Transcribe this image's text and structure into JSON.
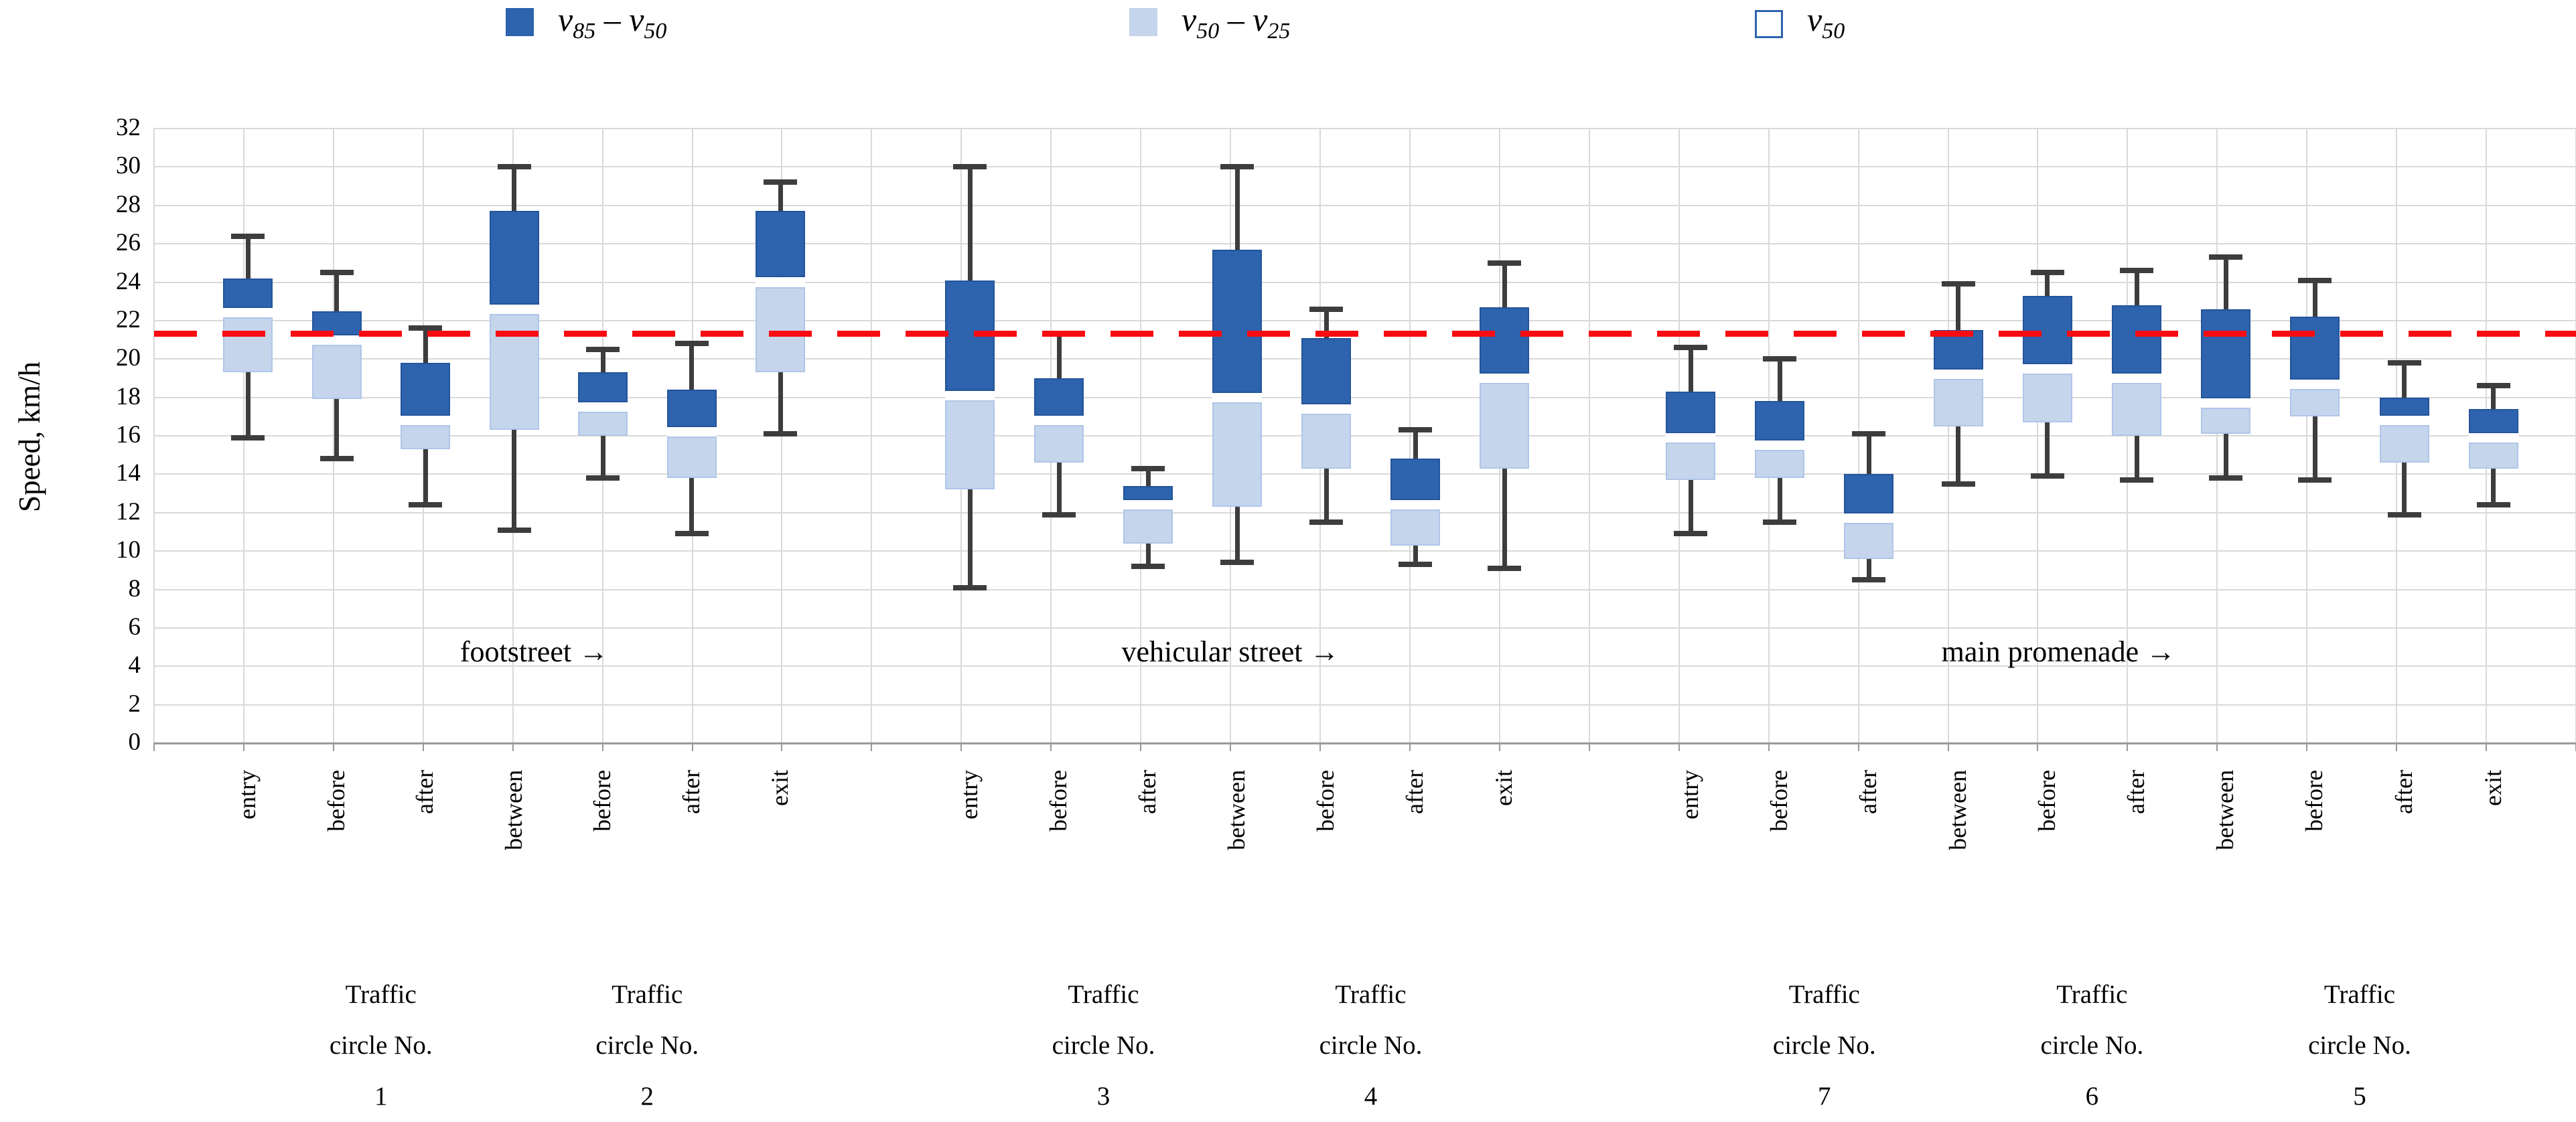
{
  "colors": {
    "dark_blue": "#2E63AD",
    "dark_blue_border": "#24549A",
    "light_blue": "#C5D5EC",
    "light_blue_border": "#AFC6E8",
    "red_line": "#F80C12",
    "gridline": "#D9D9D9",
    "axis": "#9A9A9A",
    "whisker": "#3D3D3D",
    "text": "#000000"
  },
  "legend": {
    "items": [
      {
        "swatch": "dark",
        "v1": "v",
        "sub1": "85",
        "sep": " – ",
        "v2": "v",
        "sub2": "50"
      },
      {
        "swatch": "light",
        "v1": "v",
        "sub1": "50",
        "sep": " – ",
        "v2": "v",
        "sub2": "25"
      },
      {
        "swatch": "outline",
        "v1": "v",
        "sub1": "50",
        "sep": "",
        "v2": "",
        "sub2": ""
      }
    ]
  },
  "y_axis": {
    "title": "Speed, km/h",
    "ticks": [
      "0",
      "2",
      "4",
      "6",
      "8",
      "10",
      "12",
      "14",
      "16",
      "18",
      "20",
      "22",
      "24",
      "26",
      "28",
      "30",
      "32"
    ]
  },
  "chart_data": {
    "type": "boxplot",
    "title": "",
    "xlabel": "",
    "ylabel": "Speed, km/h",
    "ylim": [
      0,
      32
    ],
    "y_tick_step": 2,
    "grid": "on",
    "legend_position": "top",
    "series_legend": [
      "v85 − v50",
      "v50 − v25",
      "v50"
    ],
    "red_dashed_line_value": 21.3,
    "groups": [
      {
        "name": "footstreet",
        "box_count": 7
      },
      {
        "name": "vehicular street",
        "box_count": 7
      },
      {
        "name": "main promenade",
        "box_count": 10
      }
    ],
    "street_annotations": [
      {
        "text": "footstreet →",
        "group": 0
      },
      {
        "text": "vehicular street →",
        "group": 1
      },
      {
        "text": "main promenade →",
        "group": 2
      }
    ],
    "circle_labels": [
      {
        "lines": [
          "Traffic",
          "circle No.",
          "1"
        ],
        "anchor_boxes": [
          1,
          2
        ]
      },
      {
        "lines": [
          "Traffic",
          "circle No.",
          "2"
        ],
        "anchor_boxes": [
          4,
          5
        ]
      },
      {
        "lines": [
          "Traffic",
          "circle No.",
          "3"
        ],
        "anchor_boxes": [
          8,
          9
        ]
      },
      {
        "lines": [
          "Traffic",
          "circle No.",
          "4"
        ],
        "anchor_boxes": [
          11,
          12
        ]
      },
      {
        "lines": [
          "Traffic",
          "circle No.",
          "7"
        ],
        "anchor_boxes": [
          15,
          16
        ]
      },
      {
        "lines": [
          "Traffic",
          "circle No.",
          "6"
        ],
        "anchor_boxes": [
          18,
          19
        ]
      },
      {
        "lines": [
          "Traffic",
          "circle No.",
          "5"
        ],
        "anchor_boxes": [
          21,
          22
        ]
      }
    ],
    "boxes": [
      {
        "group": 0,
        "tick": "entry",
        "whisker_low": 15.9,
        "v25": 19.3,
        "v50": 22.4,
        "v85": 24.2,
        "whisker_high": 26.4
      },
      {
        "group": 0,
        "tick": "before",
        "whisker_low": 14.8,
        "v25": 17.9,
        "v50": 21.0,
        "v85": 22.5,
        "whisker_high": 24.5
      },
      {
        "group": 0,
        "tick": "after",
        "whisker_low": 12.4,
        "v25": 15.3,
        "v50": 16.8,
        "v85": 19.8,
        "whisker_high": 21.6
      },
      {
        "group": 0,
        "tick": "between",
        "whisker_low": 11.1,
        "v25": 16.3,
        "v50": 22.6,
        "v85": 27.7,
        "whisker_high": 30.0
      },
      {
        "group": 0,
        "tick": "before",
        "whisker_low": 13.8,
        "v25": 16.0,
        "v50": 17.5,
        "v85": 19.3,
        "whisker_high": 20.5
      },
      {
        "group": 0,
        "tick": "after",
        "whisker_low": 10.9,
        "v25": 13.8,
        "v50": 16.2,
        "v85": 18.4,
        "whisker_high": 20.8
      },
      {
        "group": 0,
        "tick": "exit",
        "whisker_low": 16.1,
        "v25": 19.3,
        "v50": 24.0,
        "v85": 27.7,
        "whisker_high": 29.2
      },
      {
        "group": 1,
        "tick": "entry",
        "whisker_low": 8.1,
        "v25": 13.2,
        "v50": 18.1,
        "v85": 24.1,
        "whisker_high": 30.0
      },
      {
        "group": 1,
        "tick": "before",
        "whisker_low": 11.9,
        "v25": 14.6,
        "v50": 16.8,
        "v85": 19.0,
        "whisker_high": 21.3
      },
      {
        "group": 1,
        "tick": "after",
        "whisker_low": 9.2,
        "v25": 10.4,
        "v50": 12.4,
        "v85": 13.4,
        "whisker_high": 14.3
      },
      {
        "group": 1,
        "tick": "between",
        "whisker_low": 9.4,
        "v25": 12.3,
        "v50": 18.0,
        "v85": 25.7,
        "whisker_high": 30.0
      },
      {
        "group": 1,
        "tick": "before",
        "whisker_low": 11.5,
        "v25": 14.3,
        "v50": 17.4,
        "v85": 21.1,
        "whisker_high": 22.6
      },
      {
        "group": 1,
        "tick": "after",
        "whisker_low": 9.3,
        "v25": 10.3,
        "v50": 12.4,
        "v85": 14.8,
        "whisker_high": 16.3
      },
      {
        "group": 1,
        "tick": "exit",
        "whisker_low": 9.1,
        "v25": 14.3,
        "v50": 19.0,
        "v85": 22.7,
        "whisker_high": 25.0
      },
      {
        "group": 2,
        "tick": "entry",
        "whisker_low": 10.9,
        "v25": 13.7,
        "v50": 15.9,
        "v85": 18.3,
        "whisker_high": 20.6
      },
      {
        "group": 2,
        "tick": "before",
        "whisker_low": 11.5,
        "v25": 13.8,
        "v50": 15.5,
        "v85": 17.8,
        "whisker_high": 20.0
      },
      {
        "group": 2,
        "tick": "after",
        "whisker_low": 8.5,
        "v25": 9.6,
        "v50": 11.7,
        "v85": 14.0,
        "whisker_high": 16.1
      },
      {
        "group": 2,
        "tick": "between",
        "whisker_low": 13.5,
        "v25": 16.5,
        "v50": 19.2,
        "v85": 21.5,
        "whisker_high": 23.9
      },
      {
        "group": 2,
        "tick": "before",
        "whisker_low": 13.9,
        "v25": 16.7,
        "v50": 19.5,
        "v85": 23.3,
        "whisker_high": 24.5
      },
      {
        "group": 2,
        "tick": "after",
        "whisker_low": 13.7,
        "v25": 16.0,
        "v50": 19.0,
        "v85": 22.8,
        "whisker_high": 24.6
      },
      {
        "group": 2,
        "tick": "between",
        "whisker_low": 13.8,
        "v25": 16.1,
        "v50": 17.7,
        "v85": 22.6,
        "whisker_high": 25.3
      },
      {
        "group": 2,
        "tick": "before",
        "whisker_low": 13.7,
        "v25": 17.0,
        "v50": 18.7,
        "v85": 22.2,
        "whisker_high": 24.1
      },
      {
        "group": 2,
        "tick": "after",
        "whisker_low": 11.9,
        "v25": 14.6,
        "v50": 16.8,
        "v85": 18.0,
        "whisker_high": 19.8
      },
      {
        "group": 2,
        "tick": "exit",
        "whisker_low": 12.4,
        "v25": 14.3,
        "v50": 15.9,
        "v85": 17.4,
        "whisker_high": 18.6
      }
    ]
  }
}
